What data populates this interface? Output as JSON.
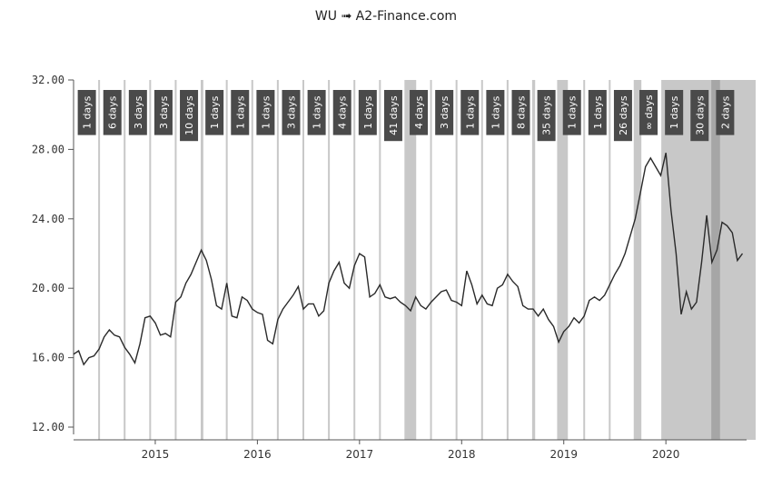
{
  "title": "WU ➟ A2-Finance.com",
  "colors": {
    "price_line": "#2a2a2a",
    "band": "#c8c8c8",
    "band_dark": "#a6a6a6",
    "vline": "#c8c8c8",
    "badge": "#4a4a4a",
    "axis": "#555555"
  },
  "chart_data": {
    "type": "line",
    "title": "WU ➟ A2-Finance.com",
    "xlabel": "",
    "ylabel": "",
    "xlim": [
      2014.2,
      2020.79
    ],
    "ylim": [
      12,
      32
    ],
    "yticks": [
      "12.00",
      "16.00",
      "20.00",
      "24.00",
      "28.00",
      "32.00"
    ],
    "xticks": [
      "2015",
      "2016",
      "2017",
      "2018",
      "2019",
      "2020"
    ],
    "xtick_values": [
      2015,
      2016,
      2017,
      2018,
      2019,
      2020
    ],
    "grid": false,
    "series": [
      {
        "x": [
          2014.2,
          2014.25,
          2014.3,
          2014.35,
          2014.4,
          2014.45,
          2014.5,
          2014.55,
          2014.6,
          2014.65,
          2014.7,
          2014.75,
          2014.8,
          2014.85,
          2014.9,
          2014.95,
          2015.0,
          2015.05,
          2015.1,
          2015.15,
          2015.2,
          2015.25,
          2015.3,
          2015.35,
          2015.4,
          2015.45,
          2015.5,
          2015.55,
          2015.6,
          2015.65,
          2015.7,
          2015.75,
          2015.8,
          2015.85,
          2015.9,
          2015.95,
          2016.0,
          2016.05,
          2016.1,
          2016.15,
          2016.2,
          2016.25,
          2016.3,
          2016.35,
          2016.4,
          2016.45,
          2016.5,
          2016.55,
          2016.6,
          2016.65,
          2016.7,
          2016.75,
          2016.8,
          2016.85,
          2016.9,
          2016.95,
          2017.0,
          2017.05,
          2017.1,
          2017.15,
          2017.2,
          2017.25,
          2017.3,
          2017.35,
          2017.4,
          2017.45,
          2017.5,
          2017.55,
          2017.6,
          2017.65,
          2017.7,
          2017.75,
          2017.8,
          2017.85,
          2017.9,
          2017.95,
          2018.0,
          2018.05,
          2018.1,
          2018.15,
          2018.2,
          2018.25,
          2018.3,
          2018.35,
          2018.4,
          2018.45,
          2018.5,
          2018.55,
          2018.6,
          2018.65,
          2018.7,
          2018.75,
          2018.8,
          2018.85,
          2018.9,
          2018.95,
          2019.0,
          2019.05,
          2019.1,
          2019.15,
          2019.2,
          2019.25,
          2019.3,
          2019.35,
          2019.4,
          2019.45,
          2019.5,
          2019.55,
          2019.6,
          2019.65,
          2019.7,
          2019.75,
          2019.8,
          2019.85,
          2019.9,
          2019.95,
          2020.0,
          2020.05,
          2020.1,
          2020.15,
          2020.2,
          2020.25,
          2020.3,
          2020.35,
          2020.4,
          2020.45,
          2020.5,
          2020.55,
          2020.6,
          2020.65,
          2020.7,
          2020.75
        ],
        "y": [
          16.2,
          16.4,
          15.6,
          16.0,
          16.1,
          16.5,
          17.2,
          17.6,
          17.3,
          17.2,
          16.6,
          16.2,
          15.7,
          16.8,
          18.3,
          18.4,
          18.0,
          17.3,
          17.4,
          17.2,
          19.2,
          19.5,
          20.3,
          20.8,
          21.5,
          22.2,
          21.6,
          20.5,
          19.0,
          18.8,
          20.3,
          18.4,
          18.3,
          19.5,
          19.3,
          18.8,
          18.6,
          18.5,
          17.0,
          16.8,
          18.2,
          18.8,
          19.2,
          19.6,
          20.1,
          18.8,
          19.1,
          19.1,
          18.4,
          18.7,
          20.3,
          21.0,
          21.5,
          20.3,
          20.0,
          21.3,
          22.0,
          21.8,
          19.5,
          19.7,
          20.2,
          19.5,
          19.4,
          19.5,
          19.2,
          19.0,
          18.7,
          19.5,
          19.0,
          18.8,
          19.2,
          19.5,
          19.8,
          19.9,
          19.3,
          19.2,
          19.0,
          21.0,
          20.2,
          19.1,
          19.6,
          19.1,
          19.0,
          20.0,
          20.2,
          20.8,
          20.4,
          20.1,
          19.0,
          18.8,
          18.8,
          18.4,
          18.8,
          18.2,
          17.8,
          16.9,
          17.5,
          17.8,
          18.3,
          18.0,
          18.4,
          19.3,
          19.5,
          19.3,
          19.6,
          20.2,
          20.8,
          21.3,
          22.0,
          23.0,
          24.0,
          25.5,
          27.0,
          27.5,
          27.0,
          26.5,
          27.8,
          24.5,
          22.0,
          18.5,
          19.8,
          18.8,
          19.2,
          21.5,
          24.2,
          21.5,
          22.2,
          23.8,
          23.6,
          23.2,
          21.6,
          22.0
        ]
      }
    ]
  },
  "shaded_bands": [
    {
      "start": 2015.445,
      "end": 2015.47
    },
    {
      "start": 2017.44,
      "end": 2017.555
    },
    {
      "start": 2018.69,
      "end": 2018.72
    },
    {
      "start": 2018.935,
      "end": 2019.04
    },
    {
      "start": 2019.685,
      "end": 2019.76
    },
    {
      "start": 2019.955,
      "end": 2020.88
    }
  ],
  "dark_bands": [
    {
      "start": 2020.445,
      "end": 2020.53
    }
  ],
  "event_lines": [
    2014.45,
    2014.7,
    2014.95,
    2015.2,
    2015.46,
    2015.7,
    2015.95,
    2016.2,
    2016.45,
    2016.7,
    2016.95,
    2017.2,
    2017.7,
    2017.95,
    2018.2,
    2018.45,
    2018.7,
    2019.2,
    2019.45,
    2020.2,
    2020.7
  ],
  "badges": [
    {
      "x": 2014.33,
      "label": "1 days"
    },
    {
      "x": 2014.58,
      "label": "6 days"
    },
    {
      "x": 2014.83,
      "label": "3 days"
    },
    {
      "x": 2015.08,
      "label": "3 days"
    },
    {
      "x": 2015.33,
      "label": "10 days"
    },
    {
      "x": 2015.58,
      "label": "1 days"
    },
    {
      "x": 2015.83,
      "label": "1 days"
    },
    {
      "x": 2016.08,
      "label": "1 days"
    },
    {
      "x": 2016.33,
      "label": "3 days"
    },
    {
      "x": 2016.58,
      "label": "1 days"
    },
    {
      "x": 2016.83,
      "label": "4 days"
    },
    {
      "x": 2017.08,
      "label": "1 days"
    },
    {
      "x": 2017.33,
      "label": "41 days"
    },
    {
      "x": 2017.58,
      "label": "4 days"
    },
    {
      "x": 2017.83,
      "label": "3 days"
    },
    {
      "x": 2018.08,
      "label": "1 days"
    },
    {
      "x": 2018.33,
      "label": "1 days"
    },
    {
      "x": 2018.58,
      "label": "8 days"
    },
    {
      "x": 2018.83,
      "label": "35 days"
    },
    {
      "x": 2019.08,
      "label": "1 days"
    },
    {
      "x": 2019.33,
      "label": "1 days"
    },
    {
      "x": 2019.58,
      "label": "26 days"
    },
    {
      "x": 2019.83,
      "label": "∞ days"
    },
    {
      "x": 2020.08,
      "label": "1 days"
    },
    {
      "x": 2020.33,
      "label": "30 days"
    },
    {
      "x": 2020.58,
      "label": "2 days"
    }
  ]
}
